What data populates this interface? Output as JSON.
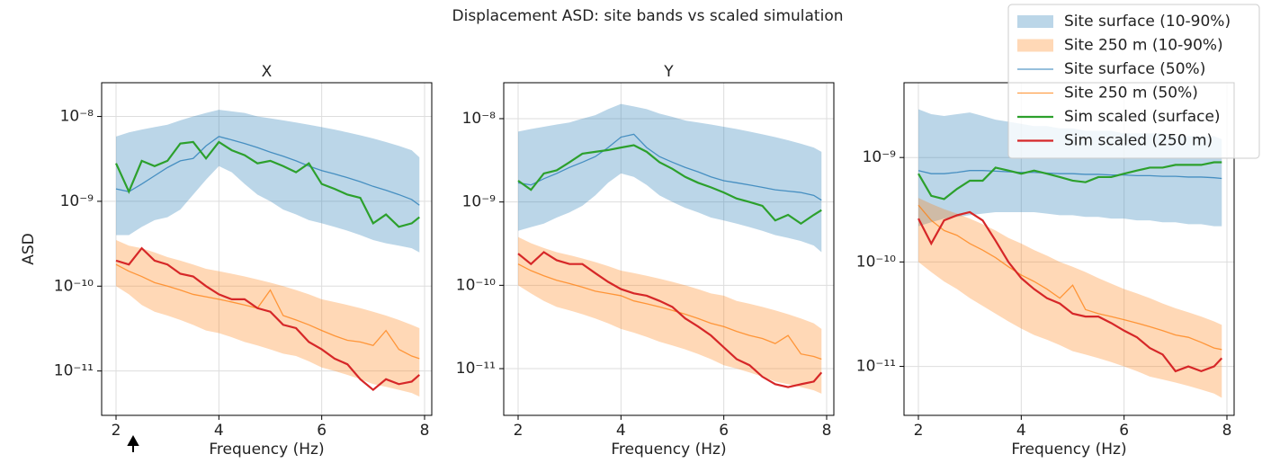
{
  "title": "Displacement ASD: site bands vs scaled simulation",
  "chart_data": [
    {
      "type": "line",
      "title": "X",
      "xlabel": "Frequency (Hz)",
      "ylabel": "ASD",
      "log_y": true,
      "grid": true,
      "x": [
        2,
        2.25,
        2.5,
        2.75,
        3,
        3.25,
        3.5,
        3.75,
        4,
        4.25,
        4.5,
        4.75,
        5,
        5.25,
        5.5,
        5.75,
        6,
        6.25,
        6.5,
        6.75,
        7,
        7.25,
        7.5,
        7.75,
        7.9
      ],
      "xlim": [
        1.72,
        8.14
      ],
      "xticks": [
        2,
        4,
        6,
        8
      ],
      "ylim": [
        3e-12,
        2.5e-08
      ],
      "yticks": [
        {
          "value": 1e-11,
          "label": "10⁻¹¹"
        },
        {
          "value": 1e-10,
          "label": "10⁻¹⁰"
        },
        {
          "value": 1e-09,
          "label": "10⁻⁹"
        },
        {
          "value": 1e-08,
          "label": "10⁻⁸"
        }
      ],
      "bands": [
        {
          "color": "#1f77b4",
          "upper": [
            5.8e-09,
            6.5e-09,
            7e-09,
            7.5e-09,
            8e-09,
            9e-09,
            1e-08,
            1.1e-08,
            1.2e-08,
            1.15e-08,
            1.1e-08,
            1e-08,
            9.5e-09,
            9e-09,
            8.5e-09,
            8e-09,
            7.5e-09,
            7e-09,
            6.5e-09,
            6e-09,
            5.5e-09,
            5e-09,
            4.5e-09,
            4e-09,
            3.3e-09
          ],
          "lower": [
            4e-10,
            4e-10,
            5e-10,
            6e-10,
            6.5e-10,
            8e-10,
            1.2e-09,
            1.8e-09,
            2.6e-09,
            2.2e-09,
            1.6e-09,
            1.2e-09,
            1e-09,
            8e-10,
            7e-10,
            6e-10,
            5.5e-10,
            5e-10,
            4.5e-10,
            4e-10,
            3.5e-10,
            3.2e-10,
            3e-10,
            2.8e-10,
            2.5e-10
          ]
        },
        {
          "color": "#ff7f0e",
          "upper": [
            3.5e-10,
            3e-10,
            2.8e-10,
            2.5e-10,
            2.2e-10,
            2e-10,
            1.8e-10,
            1.6e-10,
            1.5e-10,
            1.4e-10,
            1.3e-10,
            1.2e-10,
            1.1e-10,
            1e-10,
            9e-11,
            8e-11,
            7e-11,
            6.5e-11,
            6e-11,
            5.5e-11,
            5e-11,
            4.5e-11,
            4e-11,
            3.5e-11,
            3.2e-11
          ],
          "lower": [
            1e-10,
            8e-11,
            6e-11,
            5e-11,
            4.5e-11,
            4e-11,
            3.5e-11,
            3e-11,
            2.8e-11,
            2.5e-11,
            2.2e-11,
            2e-11,
            1.8e-11,
            1.6e-11,
            1.5e-11,
            1.3e-11,
            1.1e-11,
            1e-11,
            9e-12,
            8e-12,
            7e-12,
            6.5e-12,
            6e-12,
            5.5e-12,
            5e-12
          ]
        }
      ],
      "series": [
        {
          "color": "#1f77b4",
          "values": [
            1.4e-09,
            1.3e-09,
            1.6e-09,
            2e-09,
            2.5e-09,
            3e-09,
            3.2e-09,
            4.5e-09,
            5.8e-09,
            5.3e-09,
            4.8e-09,
            4.3e-09,
            3.8e-09,
            3.4e-09,
            3e-09,
            2.6e-09,
            2.3e-09,
            2.1e-09,
            1.9e-09,
            1.7e-09,
            1.5e-09,
            1.35e-09,
            1.2e-09,
            1.05e-09,
            9e-10
          ]
        },
        {
          "color": "#ff7f0e",
          "values": [
            1.8e-10,
            1.5e-10,
            1.3e-10,
            1.1e-10,
            1e-10,
            9e-11,
            8e-11,
            7.5e-11,
            7e-11,
            6.5e-11,
            6e-11,
            5.5e-11,
            9e-11,
            4.5e-11,
            4e-11,
            3.5e-11,
            3e-11,
            2.6e-11,
            2.3e-11,
            2.2e-11,
            2e-11,
            3e-11,
            1.8e-11,
            1.5e-11,
            1.4e-11
          ]
        },
        {
          "color": "#2ca02c",
          "values": [
            2.8e-09,
            1.3e-09,
            3e-09,
            2.6e-09,
            3e-09,
            4.8e-09,
            5e-09,
            3.2e-09,
            5e-09,
            4e-09,
            3.5e-09,
            2.8e-09,
            3e-09,
            2.6e-09,
            2.2e-09,
            2.8e-09,
            1.6e-09,
            1.4e-09,
            1.2e-09,
            1.1e-09,
            5.5e-10,
            7e-10,
            5e-10,
            5.5e-10,
            6.5e-10
          ]
        },
        {
          "color": "#d62728",
          "values": [
            2e-10,
            1.8e-10,
            2.8e-10,
            2e-10,
            1.8e-10,
            1.4e-10,
            1.3e-10,
            1e-10,
            8e-11,
            7e-11,
            7e-11,
            5.5e-11,
            5e-11,
            3.5e-11,
            3.2e-11,
            2.2e-11,
            1.8e-11,
            1.4e-11,
            1.2e-11,
            8e-12,
            6e-12,
            8e-12,
            7e-12,
            7.5e-12,
            9e-12
          ]
        }
      ]
    },
    {
      "type": "line",
      "title": "Y",
      "xlabel": "Frequency (Hz)",
      "log_y": true,
      "grid": true,
      "x": [
        2,
        2.25,
        2.5,
        2.75,
        3,
        3.25,
        3.5,
        3.75,
        4,
        4.25,
        4.5,
        4.75,
        5,
        5.25,
        5.5,
        5.75,
        6,
        6.25,
        6.5,
        6.75,
        7,
        7.25,
        7.5,
        7.75,
        7.9
      ],
      "xlim": [
        1.72,
        8.14
      ],
      "xticks": [
        2,
        4,
        6,
        8
      ],
      "ylim": [
        2.75e-12,
        2.7e-08
      ],
      "yticks": [
        {
          "value": 1e-11,
          "label": "10⁻¹¹"
        },
        {
          "value": 1e-10,
          "label": "10⁻¹⁰"
        },
        {
          "value": 1e-09,
          "label": "10⁻⁹"
        },
        {
          "value": 1e-08,
          "label": "10⁻⁸"
        }
      ],
      "bands": [
        {
          "color": "#1f77b4",
          "upper": [
            7e-09,
            7.5e-09,
            8e-09,
            8.5e-09,
            9e-09,
            1e-08,
            1.1e-08,
            1.3e-08,
            1.5e-08,
            1.4e-08,
            1.3e-08,
            1.15e-08,
            1.05e-08,
            9.5e-09,
            9e-09,
            8.5e-09,
            8e-09,
            7.5e-09,
            7e-09,
            6.5e-09,
            6e-09,
            5.5e-09,
            5e-09,
            4.5e-09,
            4e-09
          ],
          "lower": [
            4.5e-10,
            5e-10,
            5.5e-10,
            6.5e-10,
            7.5e-10,
            9e-10,
            1.2e-09,
            1.7e-09,
            2.2e-09,
            2e-09,
            1.6e-09,
            1.2e-09,
            1e-09,
            8.5e-10,
            7.5e-10,
            6.5e-10,
            6e-10,
            5.5e-10,
            5e-10,
            4.5e-10,
            4e-10,
            3.7e-10,
            3.4e-10,
            3e-10,
            2.5e-10
          ]
        },
        {
          "color": "#ff7f0e",
          "upper": [
            3.8e-10,
            3.2e-10,
            2.8e-10,
            2.5e-10,
            2.3e-10,
            2.1e-10,
            1.9e-10,
            1.7e-10,
            1.5e-10,
            1.4e-10,
            1.3e-10,
            1.2e-10,
            1.1e-10,
            1e-10,
            9e-11,
            8e-11,
            7.5e-11,
            6.5e-11,
            6e-11,
            5.5e-11,
            5e-11,
            4.5e-11,
            4e-11,
            3.5e-11,
            3e-11
          ],
          "lower": [
            1e-10,
            8e-11,
            6.5e-11,
            5.5e-11,
            5e-11,
            4.5e-11,
            4e-11,
            3.5e-11,
            3e-11,
            2.7e-11,
            2.4e-11,
            2.1e-11,
            1.9e-11,
            1.7e-11,
            1.5e-11,
            1.3e-11,
            1.1e-11,
            1e-11,
            9e-12,
            8e-12,
            7e-12,
            6.5e-12,
            6e-12,
            5.5e-12,
            5e-12
          ]
        }
      ],
      "series": [
        {
          "color": "#1f77b4",
          "values": [
            1.7e-09,
            1.6e-09,
            1.9e-09,
            2.2e-09,
            2.6e-09,
            3e-09,
            3.5e-09,
            4.5e-09,
            6e-09,
            6.5e-09,
            4.5e-09,
            3.5e-09,
            3e-09,
            2.6e-09,
            2.3e-09,
            2e-09,
            1.8e-09,
            1.7e-09,
            1.6e-09,
            1.5e-09,
            1.4e-09,
            1.35e-09,
            1.3e-09,
            1.2e-09,
            1.05e-09
          ]
        },
        {
          "color": "#ff7f0e",
          "values": [
            1.8e-10,
            1.5e-10,
            1.3e-10,
            1.15e-10,
            1.05e-10,
            9.5e-11,
            8.5e-11,
            8e-11,
            7.5e-11,
            6.5e-11,
            6e-11,
            5.5e-11,
            5e-11,
            4.5e-11,
            4e-11,
            3.5e-11,
            3.2e-11,
            2.8e-11,
            2.5e-11,
            2.3e-11,
            2e-11,
            2.5e-11,
            1.5e-11,
            1.4e-11,
            1.3e-11
          ]
        },
        {
          "color": "#2ca02c",
          "values": [
            1.8e-09,
            1.4e-09,
            2.2e-09,
            2.4e-09,
            3e-09,
            3.8e-09,
            4e-09,
            4.2e-09,
            4.5e-09,
            4.8e-09,
            4e-09,
            3e-09,
            2.5e-09,
            2e-09,
            1.7e-09,
            1.5e-09,
            1.3e-09,
            1.1e-09,
            1e-09,
            9e-10,
            6e-10,
            7e-10,
            5.5e-10,
            7e-10,
            8e-10
          ]
        },
        {
          "color": "#d62728",
          "values": [
            2.4e-10,
            1.8e-10,
            2.5e-10,
            2e-10,
            1.8e-10,
            1.8e-10,
            1.4e-10,
            1.1e-10,
            9e-11,
            8e-11,
            7.5e-11,
            6.5e-11,
            5.5e-11,
            4e-11,
            3.2e-11,
            2.5e-11,
            1.8e-11,
            1.3e-11,
            1.1e-11,
            8e-12,
            6.5e-12,
            6e-12,
            6.5e-12,
            7e-12,
            9e-12
          ]
        }
      ]
    },
    {
      "type": "line",
      "xlabel": "Frequency (Hz)",
      "log_y": true,
      "grid": true,
      "legend": "upper right",
      "x": [
        2,
        2.25,
        2.5,
        2.75,
        3,
        3.25,
        3.5,
        3.75,
        4,
        4.25,
        4.5,
        4.75,
        5,
        5.25,
        5.5,
        5.75,
        6,
        6.25,
        6.5,
        6.75,
        7,
        7.25,
        7.5,
        7.75,
        7.9
      ],
      "xlim": [
        1.72,
        8.14
      ],
      "xticks": [
        2,
        4,
        6,
        8
      ],
      "ylim": [
        3.4e-12,
        5.2e-09
      ],
      "yticks": [
        {
          "value": 1e-11,
          "label": "10⁻¹¹"
        },
        {
          "value": 1e-10,
          "label": "10⁻¹⁰"
        },
        {
          "value": 1e-09,
          "label": "10⁻⁹"
        }
      ],
      "bands": [
        {
          "name": "Site surface (10-90%)",
          "color": "#1f77b4",
          "upper": [
            2.9e-09,
            2.6e-09,
            2.5e-09,
            2.6e-09,
            2.7e-09,
            2.5e-09,
            2.3e-09,
            2.2e-09,
            2.1e-09,
            2e-09,
            2e-09,
            1.9e-09,
            1.9e-09,
            1.8e-09,
            1.8e-09,
            1.8e-09,
            1.7e-09,
            1.7e-09,
            1.7e-09,
            1.7e-09,
            1.6e-09,
            1.6e-09,
            1.6e-09,
            1.6e-09,
            1.5e-09
          ],
          "lower": [
            2.2e-10,
            2.4e-10,
            2.6e-10,
            2.7e-10,
            2.8e-10,
            2.9e-10,
            3e-10,
            3e-10,
            3e-10,
            3e-10,
            2.9e-10,
            2.8e-10,
            2.8e-10,
            2.7e-10,
            2.7e-10,
            2.6e-10,
            2.6e-10,
            2.5e-10,
            2.5e-10,
            2.4e-10,
            2.4e-10,
            2.3e-10,
            2.3e-10,
            2.2e-10,
            2.2e-10
          ]
        },
        {
          "name": "Site 250 m (10-90%)",
          "color": "#ff7f0e",
          "upper": [
            4.1e-10,
            3.6e-10,
            3.2e-10,
            2.9e-10,
            2.6e-10,
            2.3e-10,
            2e-10,
            1.7e-10,
            1.5e-10,
            1.3e-10,
            1.15e-10,
            1e-10,
            9e-11,
            8e-11,
            7e-11,
            6.2e-11,
            5.5e-11,
            5e-11,
            4.5e-11,
            4e-11,
            3.6e-11,
            3.3e-11,
            3e-11,
            2.7e-11,
            2.5e-11
          ],
          "lower": [
            1e-10,
            8e-11,
            6.5e-11,
            5.5e-11,
            4.5e-11,
            3.8e-11,
            3.2e-11,
            2.7e-11,
            2.3e-11,
            2e-11,
            1.8e-11,
            1.6e-11,
            1.4e-11,
            1.3e-11,
            1.2e-11,
            1.1e-11,
            1e-11,
            9e-12,
            8e-12,
            7.5e-12,
            7e-12,
            6.5e-12,
            6e-12,
            5.5e-12,
            5e-12
          ]
        }
      ],
      "series": [
        {
          "name": "Site surface (50%)",
          "color": "#1f77b4",
          "values": [
            7.5e-10,
            7e-10,
            7e-10,
            7.2e-10,
            7.5e-10,
            7.5e-10,
            7.4e-10,
            7.3e-10,
            7.2e-10,
            7.2e-10,
            7.1e-10,
            7e-10,
            7e-10,
            6.9e-10,
            6.9e-10,
            6.8e-10,
            6.8e-10,
            6.7e-10,
            6.7e-10,
            6.6e-10,
            6.6e-10,
            6.5e-10,
            6.5e-10,
            6.4e-10,
            6.3e-10
          ]
        },
        {
          "name": "Site 250 m (50%)",
          "color": "#ff7f0e",
          "values": [
            3.5e-10,
            2.5e-10,
            2e-10,
            1.8e-10,
            1.5e-10,
            1.3e-10,
            1.1e-10,
            9e-11,
            7.5e-11,
            6.5e-11,
            5.5e-11,
            4.5e-11,
            6e-11,
            3.5e-11,
            3.2e-11,
            3e-11,
            2.8e-11,
            2.6e-11,
            2.4e-11,
            2.2e-11,
            2e-11,
            1.9e-11,
            1.7e-11,
            1.5e-11,
            1.45e-11
          ]
        },
        {
          "name": "Sim scaled (surface)",
          "color": "#2ca02c",
          "values": [
            7e-10,
            4.3e-10,
            4e-10,
            5e-10,
            6e-10,
            6e-10,
            8e-10,
            7.5e-10,
            7e-10,
            7.5e-10,
            7e-10,
            6.5e-10,
            6e-10,
            5.8e-10,
            6.5e-10,
            6.5e-10,
            7e-10,
            7.5e-10,
            8e-10,
            8e-10,
            8.5e-10,
            8.5e-10,
            8.5e-10,
            9e-10,
            9e-10
          ]
        },
        {
          "name": "Sim scaled (250 m)",
          "color": "#d62728",
          "values": [
            2.6e-10,
            1.5e-10,
            2.5e-10,
            2.8e-10,
            3e-10,
            2.5e-10,
            1.6e-10,
            1e-10,
            7e-11,
            5.5e-11,
            4.5e-11,
            4e-11,
            3.2e-11,
            3e-11,
            3e-11,
            2.6e-11,
            2.2e-11,
            1.9e-11,
            1.5e-11,
            1.3e-11,
            9e-12,
            1e-11,
            9e-12,
            1e-11,
            1.2e-11
          ]
        }
      ]
    }
  ]
}
